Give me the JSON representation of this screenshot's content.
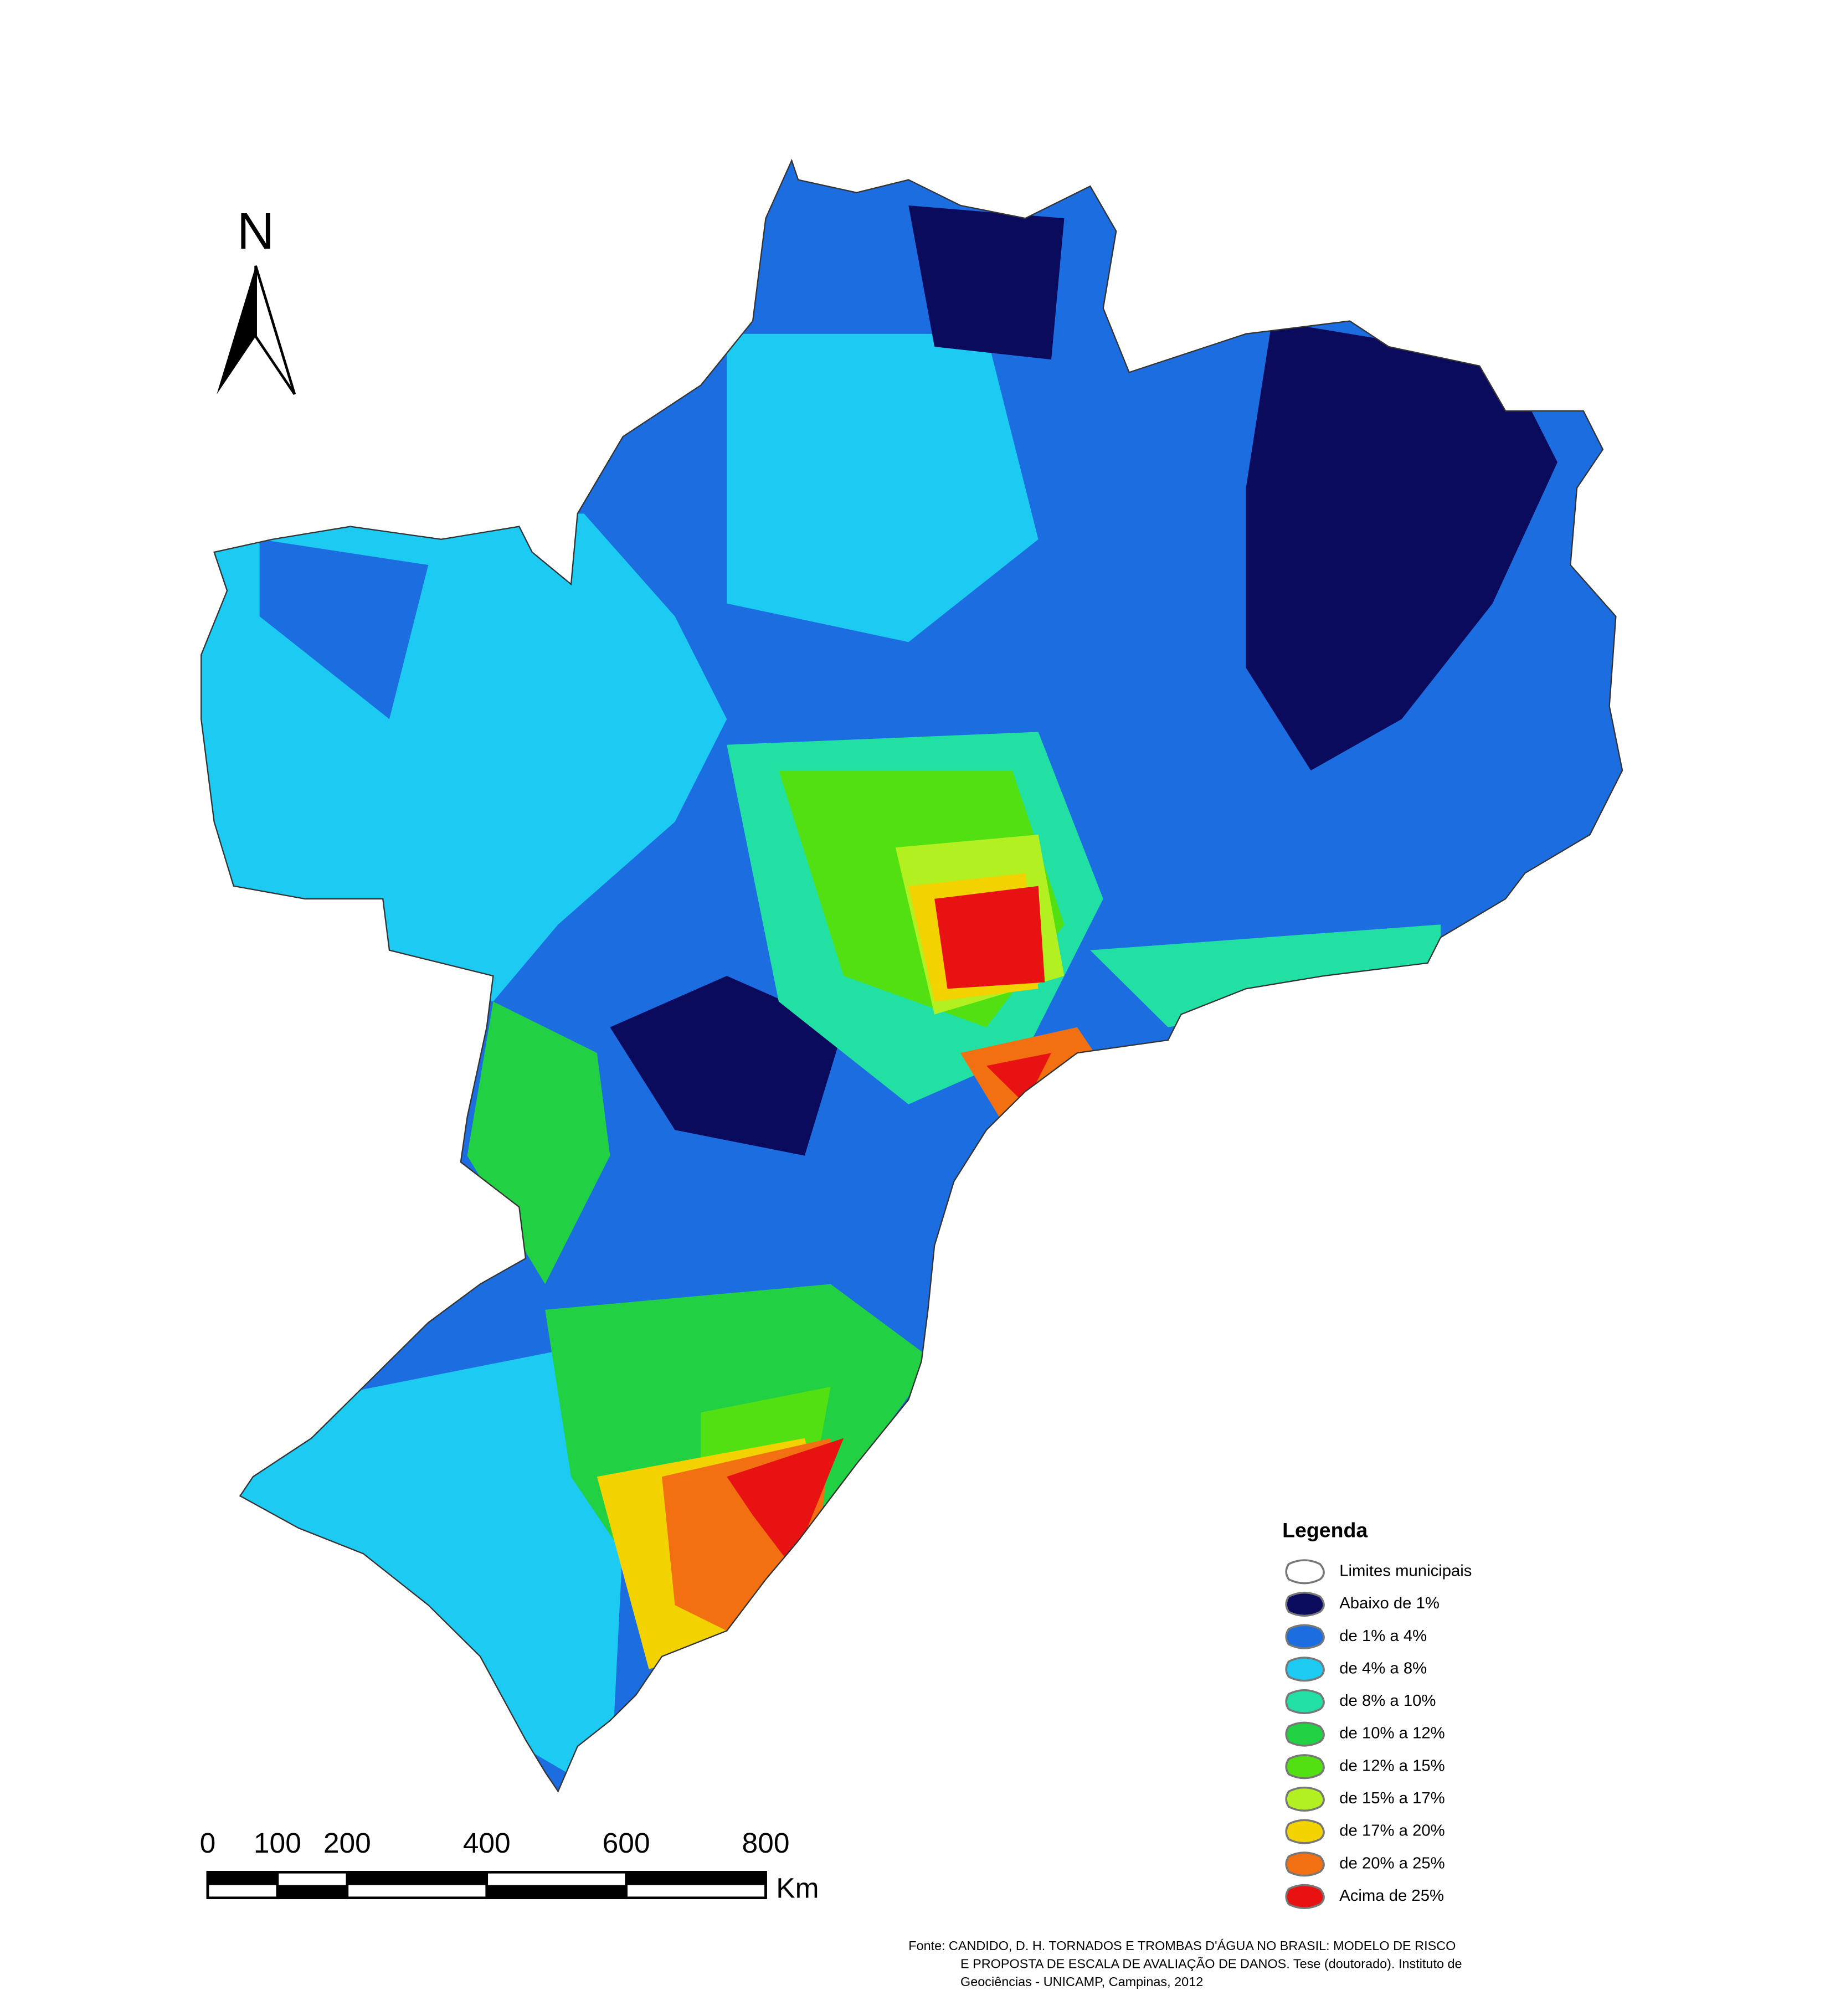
{
  "north_arrow": {
    "label": "N"
  },
  "legend": {
    "title": "Legenda",
    "items": [
      {
        "label": "Limites municipais",
        "color": "#ffffff"
      },
      {
        "label": "Abaixo de  1%",
        "color": "#0b0b5e"
      },
      {
        "label": "de 1% a 4%",
        "color": "#1c6ee0"
      },
      {
        "label": "de 4% a 8%",
        "color": "#1ccaf2"
      },
      {
        "label": "de 8% a 10%",
        "color": "#22e0a4"
      },
      {
        "label": "de 10% a 12%",
        "color": "#22d044"
      },
      {
        "label": "de 12% a 15%",
        "color": "#52e012"
      },
      {
        "label": "de 15% a 17%",
        "color": "#b2f022"
      },
      {
        "label": "de 17% a 20%",
        "color": "#f2d200"
      },
      {
        "label": "de 20% a 25%",
        "color": "#f27012"
      },
      {
        "label": "Acima de 25%",
        "color": "#e81212"
      }
    ]
  },
  "scale_bar": {
    "ticks": [
      0,
      100,
      200,
      400,
      600,
      800
    ],
    "unit": "Km"
  },
  "source": {
    "label": "Fonte:",
    "lines": [
      "CANDIDO, D. H.  TORNADOS E TROMBAS D'ÁGUA NO BRASIL: MODELO DE RISCO",
      "E  PROPOSTA DE ESCALA DE AVALIAÇÃO DE DANOS. Tese (doutorado). Instituto de",
      "Geociências - UNICAMP, Campinas, 2012"
    ]
  }
}
